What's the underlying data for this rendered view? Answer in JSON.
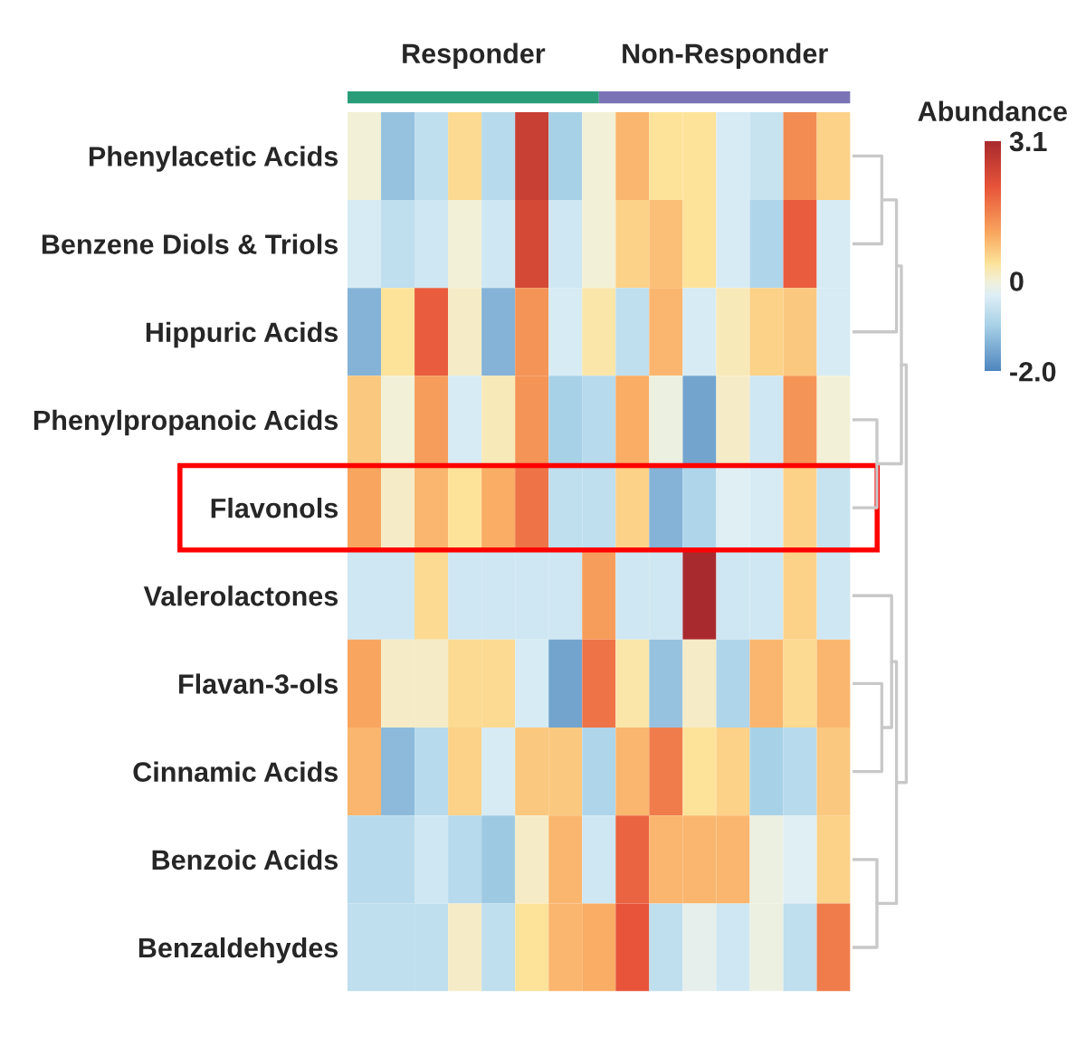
{
  "chart_data": {
    "type": "heatmap",
    "categories": [
      null,
      null,
      null,
      null,
      null,
      null,
      null,
      null,
      null,
      null,
      null,
      null,
      null,
      null,
      null
    ],
    "y_categories": [
      "Phenylacetic Acids",
      "Benzene Diols & Triols",
      "Hippuric Acids",
      "Phenylpropanoic Acids",
      "Flavonols",
      "Valerolactones",
      "Flavan-3-ols",
      "Cinnamic Acids",
      "Benzoic Acids",
      "Benzaldehydes"
    ],
    "cells": [
      [
        0,
        -1.2,
        -0.7,
        0.5,
        -0.8,
        2.6,
        -1.0,
        0,
        0.9,
        0.4,
        0.4,
        -0.4,
        -0.6,
        1.4,
        0.6
      ],
      [
        -0.4,
        -0.7,
        -0.5,
        0,
        -0.5,
        2.4,
        -0.5,
        0,
        0.6,
        0.8,
        0.4,
        -0.4,
        -0.9,
        2.0,
        -0.4
      ],
      [
        -1.4,
        0.4,
        2.0,
        0.1,
        -1.4,
        1.3,
        -0.4,
        0.3,
        -0.7,
        0.9,
        -0.4,
        0.2,
        0.6,
        0.7,
        -0.4
      ],
      [
        0.7,
        0,
        1.2,
        -0.4,
        0.2,
        1.3,
        -1.0,
        -0.8,
        1.0,
        -0.1,
        -1.6,
        0.1,
        -0.5,
        1.3,
        0
      ],
      [
        1.1,
        0.1,
        0.9,
        0.4,
        1.0,
        1.7,
        -0.7,
        -0.7,
        0.6,
        -1.4,
        -0.9,
        -0.3,
        -0.4,
        0.6,
        -0.6
      ],
      [
        -0.5,
        -0.5,
        0.5,
        -0.5,
        -0.5,
        -0.5,
        -0.5,
        1.2,
        -0.5,
        -0.5,
        3.1,
        -0.5,
        -0.5,
        0.6,
        -0.5
      ],
      [
        1.1,
        0.1,
        0.1,
        0.5,
        0.5,
        -0.4,
        -1.6,
        1.7,
        0.3,
        -1.2,
        0.1,
        -0.9,
        0.9,
        0.5,
        0.9
      ],
      [
        0.9,
        -1.3,
        -0.8,
        0.6,
        -0.4,
        0.7,
        0.7,
        -0.9,
        0.9,
        1.6,
        0.4,
        0.6,
        -1.0,
        -0.8,
        0.7
      ],
      [
        -0.8,
        -0.8,
        -0.5,
        -0.8,
        -1.1,
        0.1,
        0.9,
        -0.5,
        1.9,
        0.9,
        0.9,
        0.9,
        -0.1,
        -0.3,
        0.6
      ],
      [
        -0.7,
        -0.7,
        -0.7,
        0.1,
        -0.7,
        0.4,
        0.9,
        1.0,
        2.1,
        -0.7,
        -0.2,
        -0.5,
        -0.1,
        -0.7,
        1.6
      ]
    ],
    "clabel": "Abundance",
    "clim": [
      -2.0,
      3.1
    ],
    "cticks": [
      {
        "value": 3.1,
        "label": "3.1"
      },
      0,
      {
        "value": -2.0,
        "label": "-2.0"
      }
    ],
    "annotations": [
      "Responder",
      "Non-Responder"
    ],
    "tick_labels": "y"
  }
}
